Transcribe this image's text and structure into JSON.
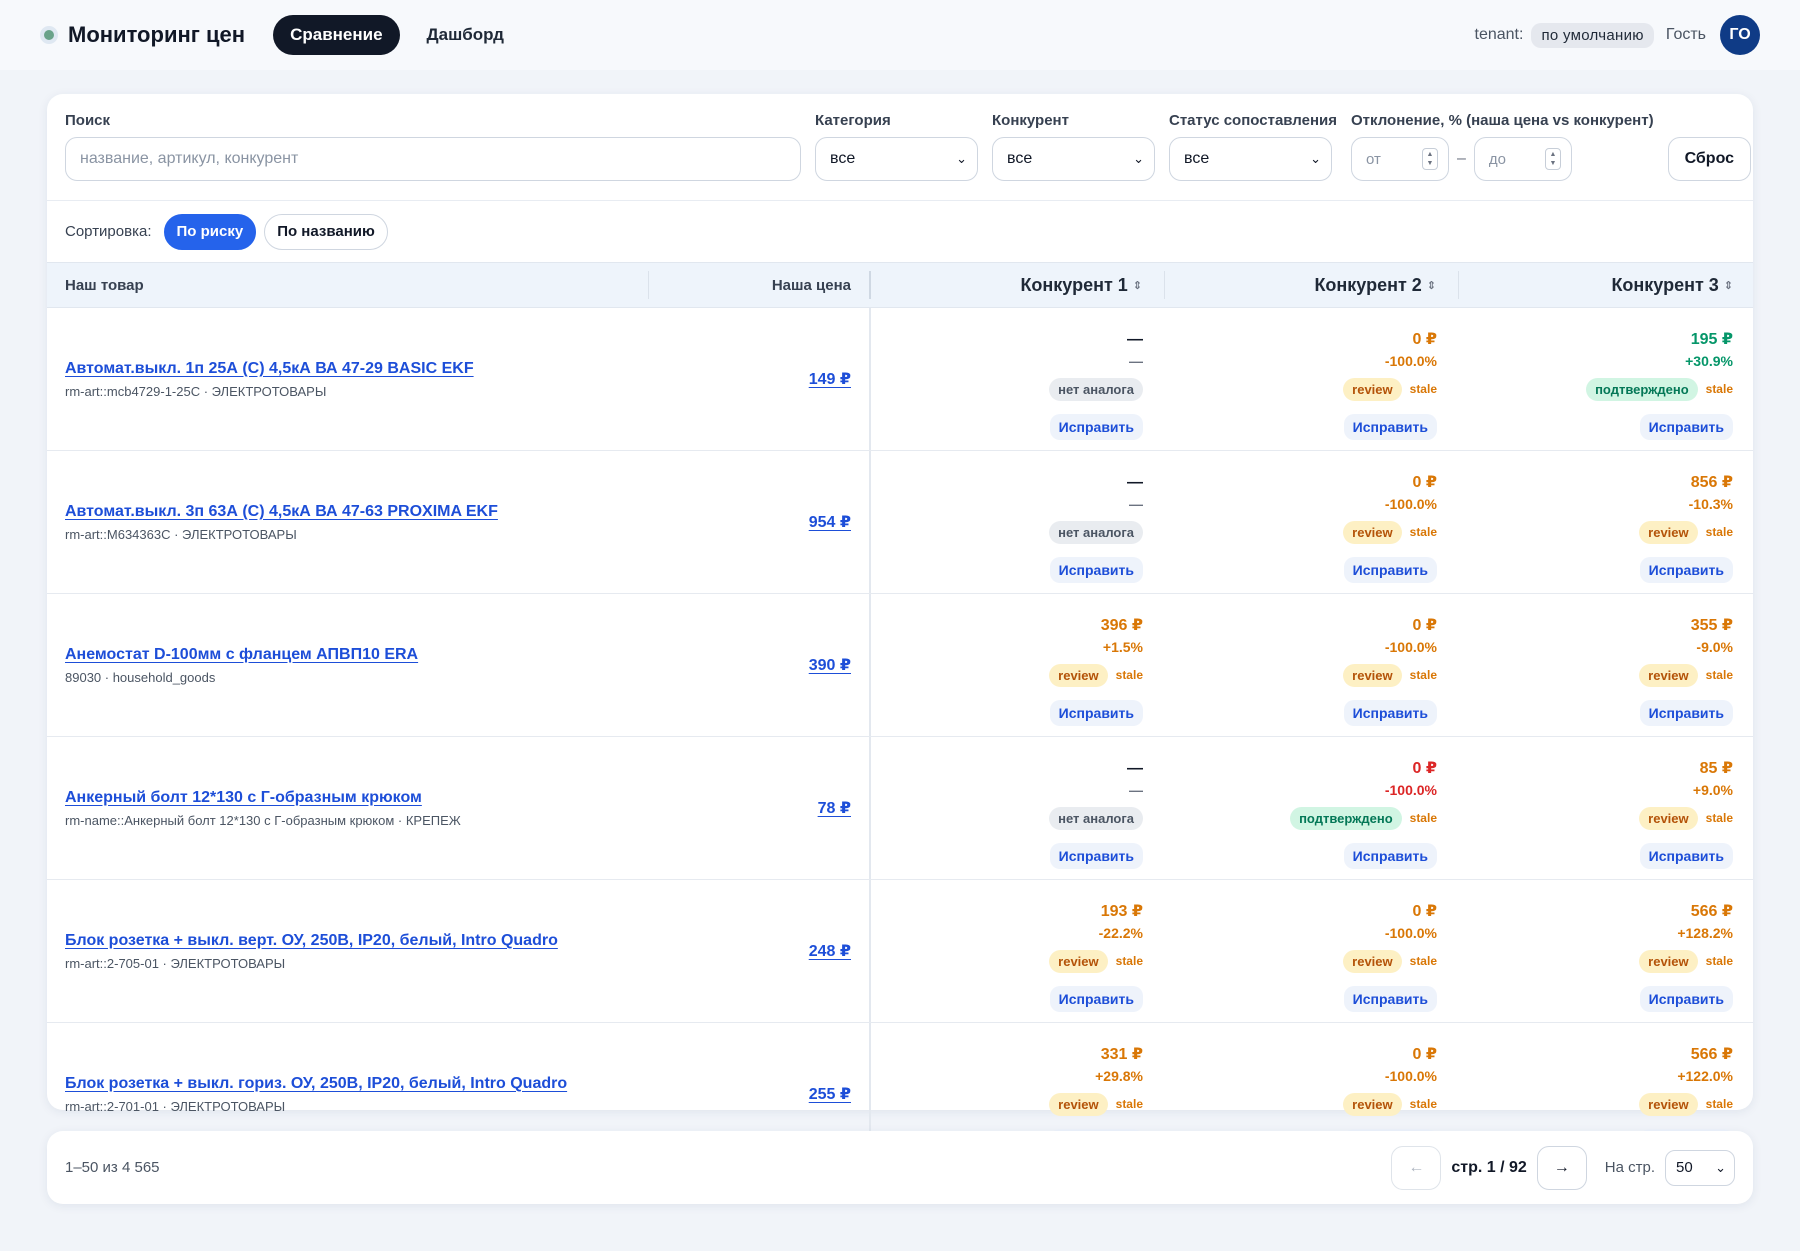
{
  "header": {
    "title": "Мониторинг цен",
    "tabs": [
      {
        "label": "Сравнение",
        "active": true
      },
      {
        "label": "Дашборд",
        "active": false
      }
    ],
    "tenant_label": "tenant:",
    "tenant_value": "по умолчанию",
    "user": "Гость",
    "avatar": "ГО"
  },
  "filters": {
    "search_label": "Поиск",
    "search_placeholder": "название, артикул, конкурент",
    "category_label": "Категория",
    "category_value": "все",
    "competitor_label": "Конкурент",
    "competitor_value": "все",
    "status_label": "Статус сопоставления",
    "status_value": "все",
    "deviation_label": "Отклонение, % (наша цена vs конкурент)",
    "from_placeholder": "от",
    "to_placeholder": "до",
    "range_dash": "–",
    "reset": "Сброс"
  },
  "sort": {
    "label": "Сортировка:",
    "options": [
      {
        "label": "По риску",
        "active": true
      },
      {
        "label": "По названию",
        "active": false
      }
    ]
  },
  "table": {
    "headers": {
      "product": "Наш товар",
      "price": "Наша цена",
      "comp1": "Конкурент 1",
      "comp2": "Конкурент 2",
      "comp3": "Конкурент 3"
    },
    "fix_label": "Исправить",
    "rows": [
      {
        "name": "Автомат.выкл. 1п 25А (С) 4,5кА ВА 47-29 BASIC EKF",
        "meta": "rm-art::mcb4729-1-25C · ЭЛЕКТРОТОВАРЫ",
        "price": "149 ₽",
        "comps": [
          {
            "price": "—",
            "delta": "—",
            "tone": "none",
            "badge": "нет аналога",
            "badge_type": "none",
            "stale": ""
          },
          {
            "price": "0 ₽",
            "delta": "-100.0%",
            "tone": "orange",
            "badge": "review",
            "badge_type": "review",
            "stale": "stale"
          },
          {
            "price": "195 ₽",
            "delta": "+30.9%",
            "tone": "green",
            "badge": "подтверждено",
            "badge_type": "ok",
            "stale": "stale"
          }
        ]
      },
      {
        "name": "Автомат.выкл. 3п 63А (С) 4,5кА ВА 47-63 PROXIMA EKF",
        "meta": "rm-art::M634363C · ЭЛЕКТРОТОВАРЫ",
        "price": "954 ₽",
        "comps": [
          {
            "price": "—",
            "delta": "—",
            "tone": "none",
            "badge": "нет аналога",
            "badge_type": "none",
            "stale": ""
          },
          {
            "price": "0 ₽",
            "delta": "-100.0%",
            "tone": "orange",
            "badge": "review",
            "badge_type": "review",
            "stale": "stale"
          },
          {
            "price": "856 ₽",
            "delta": "-10.3%",
            "tone": "orange",
            "badge": "review",
            "badge_type": "review",
            "stale": "stale"
          }
        ]
      },
      {
        "name": "Анемостат D-100мм с фланцем АПВП10 ERA",
        "meta": "89030 · household_goods",
        "price": "390 ₽",
        "comps": [
          {
            "price": "396 ₽",
            "delta": "+1.5%",
            "tone": "orange",
            "badge": "review",
            "badge_type": "review",
            "stale": "stale"
          },
          {
            "price": "0 ₽",
            "delta": "-100.0%",
            "tone": "orange",
            "badge": "review",
            "badge_type": "review",
            "stale": "stale"
          },
          {
            "price": "355 ₽",
            "delta": "-9.0%",
            "tone": "orange",
            "badge": "review",
            "badge_type": "review",
            "stale": "stale"
          }
        ]
      },
      {
        "name": "Анкерный болт 12*130 с Г-образным крюком",
        "meta": "rm-name::Анкерный болт 12*130 с Г-образным крюком · КРЕПЕЖ",
        "price": "78 ₽",
        "comps": [
          {
            "price": "—",
            "delta": "—",
            "tone": "none",
            "badge": "нет аналога",
            "badge_type": "none",
            "stale": ""
          },
          {
            "price": "0 ₽",
            "delta": "-100.0%",
            "tone": "red",
            "badge": "подтверждено",
            "badge_type": "ok",
            "stale": "stale"
          },
          {
            "price": "85 ₽",
            "delta": "+9.0%",
            "tone": "orange",
            "badge": "review",
            "badge_type": "review",
            "stale": "stale"
          }
        ]
      },
      {
        "name": "Блок розетка + выкл. верт. ОУ, 250В, IP20, белый, Intro Quadro",
        "meta": "rm-art::2-705-01 · ЭЛЕКТРОТОВАРЫ",
        "price": "248 ₽",
        "comps": [
          {
            "price": "193 ₽",
            "delta": "-22.2%",
            "tone": "orange",
            "badge": "review",
            "badge_type": "review",
            "stale": "stale"
          },
          {
            "price": "0 ₽",
            "delta": "-100.0%",
            "tone": "orange",
            "badge": "review",
            "badge_type": "review",
            "stale": "stale"
          },
          {
            "price": "566 ₽",
            "delta": "+128.2%",
            "tone": "orange",
            "badge": "review",
            "badge_type": "review",
            "stale": "stale"
          }
        ]
      },
      {
        "name": "Блок розетка + выкл. гориз. ОУ, 250В, IP20, белый, Intro Quadro",
        "meta": "rm-art::2-701-01 · ЭЛЕКТРОТОВАРЫ",
        "price": "255 ₽",
        "comps": [
          {
            "price": "331 ₽",
            "delta": "+29.8%",
            "tone": "orange",
            "badge": "review",
            "badge_type": "review",
            "stale": "stale"
          },
          {
            "price": "0 ₽",
            "delta": "-100.0%",
            "tone": "orange",
            "badge": "review",
            "badge_type": "review",
            "stale": "stale"
          },
          {
            "price": "566 ₽",
            "delta": "+122.0%",
            "tone": "orange",
            "badge": "review",
            "badge_type": "review",
            "stale": "stale"
          }
        ]
      }
    ]
  },
  "pagination": {
    "range": "1–50 из 4 565",
    "prev": "←",
    "next": "→",
    "page": "стр. 1 / 92",
    "per_page_label": "На стр.",
    "per_page_value": "50"
  }
}
